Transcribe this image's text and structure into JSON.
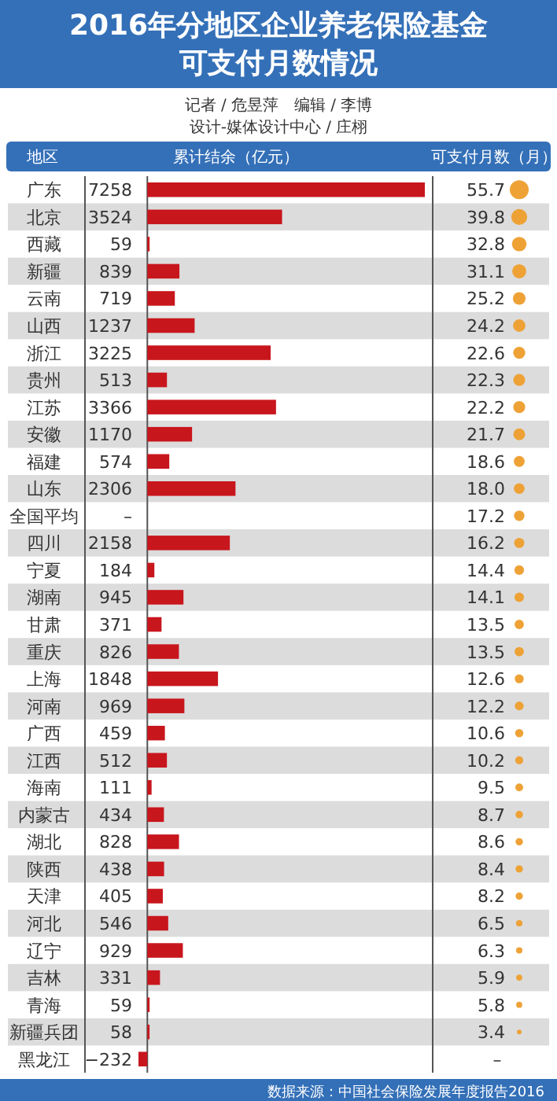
{
  "chart_data": [
    {
      "type": "bar",
      "orientation": "horizontal",
      "title": "2016年分地区企业养老保险基金可支付月数情况",
      "subtitle": "记者 / 危昱萍　编辑 / 李博",
      "ylabel": "地区",
      "xlabel": "累计结余（亿元）",
      "color": "#c8161d",
      "categories": [
        "广东",
        "北京",
        "西藏",
        "新疆",
        "云南",
        "山西",
        "浙江",
        "贵州",
        "江苏",
        "安徽",
        "福建",
        "山东",
        "全国平均",
        "四川",
        "宁夏",
        "湖南",
        "甘肃",
        "重庆",
        "上海",
        "河南",
        "广西",
        "江西",
        "海南",
        "内蒙古",
        "湖北",
        "陕西",
        "天津",
        "河北",
        "辽宁",
        "吉林",
        "青海",
        "新疆兵团",
        "黑龙江"
      ],
      "values": [
        7258,
        3524,
        59,
        839,
        719,
        1237,
        3225,
        513,
        3366,
        1170,
        574,
        2306,
        null,
        2158,
        184,
        945,
        371,
        826,
        1848,
        969,
        459,
        512,
        111,
        434,
        828,
        438,
        405,
        546,
        929,
        331,
        59,
        58,
        -232
      ],
      "value_labels": [
        "7258",
        "3524",
        "59",
        "839",
        "719",
        "1237",
        "3225",
        "513",
        "3366",
        "1170",
        "574",
        "2306",
        "–",
        "2158",
        "184",
        "945",
        "371",
        "826",
        "1848",
        "969",
        "459",
        "512",
        "111",
        "434",
        "828",
        "438",
        "405",
        "546",
        "929",
        "331",
        "59",
        "58",
        "−232"
      ],
      "annotations": [
        "设计-媒体设计中心 / 庄栩",
        "数据来源：中国社会保险发展年度报告2016"
      ]
    },
    {
      "type": "other",
      "xlabel": "可支付月数（月）",
      "color": "#eea236",
      "values": [
        55.7,
        39.8,
        32.8,
        31.1,
        25.2,
        24.2,
        22.6,
        22.3,
        22.2,
        21.7,
        18.6,
        18.0,
        17.2,
        16.2,
        14.4,
        14.1,
        13.5,
        13.5,
        12.6,
        12.2,
        10.6,
        10.2,
        9.5,
        8.7,
        8.6,
        8.4,
        8.2,
        6.5,
        6.3,
        5.9,
        5.8,
        3.4,
        null
      ],
      "value_labels": [
        "55.7",
        "39.8",
        "32.8",
        "31.1",
        "25.2",
        "24.2",
        "22.6",
        "22.3",
        "22.2",
        "21.7",
        "18.6",
        "18.0",
        "17.2",
        "16.2",
        "14.4",
        "14.1",
        "13.5",
        "13.5",
        "12.6",
        "12.2",
        "10.6",
        "10.2",
        "9.5",
        "8.7",
        "8.6",
        "8.4",
        "8.2",
        "6.5",
        "6.3",
        "5.9",
        "5.8",
        "3.4",
        "–"
      ]
    }
  ]
}
